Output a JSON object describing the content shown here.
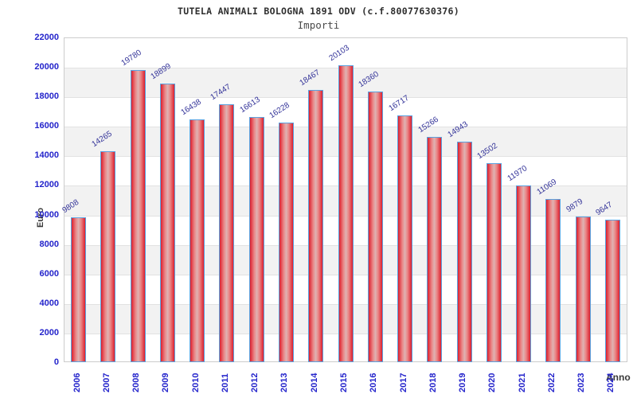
{
  "chart_data": {
    "type": "bar",
    "title": "TUTELA ANIMALI BOLOGNA 1891 ODV (c.f.80077630376)",
    "subtitle": "Importi",
    "xlabel": "Anno",
    "ylabel": "Euro",
    "categories": [
      "2006",
      "2007",
      "2008",
      "2009",
      "2010",
      "2011",
      "2012",
      "2013",
      "2014",
      "2015",
      "2016",
      "2017",
      "2018",
      "2019",
      "2020",
      "2021",
      "2022",
      "2023",
      "2024"
    ],
    "values": [
      9808,
      14265,
      19780,
      18899,
      16438,
      17447,
      16613,
      16228,
      18467,
      20103,
      18360,
      16717,
      15266,
      14943,
      13502,
      11970,
      11069,
      9879,
      9647
    ],
    "ylim": [
      0,
      22000
    ],
    "ytick_step": 2000,
    "legend": "none",
    "grid": true,
    "colors": {
      "bar_edge": "#dc1f2e",
      "bar_mid": "#ea8484",
      "bar_core": "#dfb3b3",
      "bar_border": "#5aa2e0",
      "tick_text": "#2323cb",
      "value_text": "#333399",
      "title_text": "#2e2e2e",
      "subtitle_text": "#4a4a4a",
      "axis_name_text": "#3a3a3a",
      "band_fill": "#f2f2f2",
      "grid_line": "#e2e2e2",
      "plot_border": "#cccccc"
    }
  }
}
